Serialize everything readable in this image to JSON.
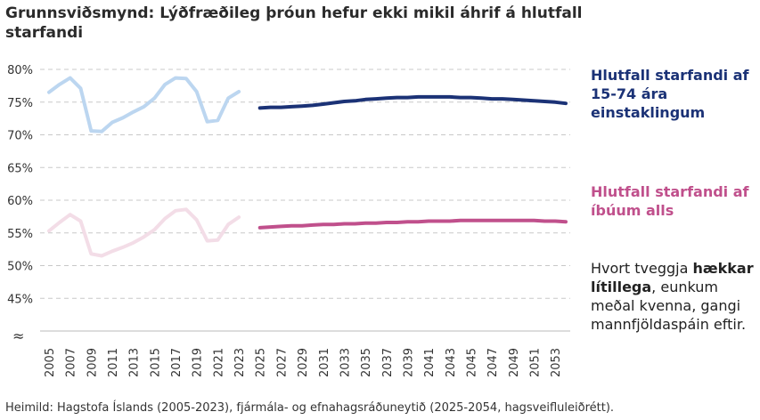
{
  "title": "Grunnsviðsmynd: Lýðfræðileg þróun hefur ekki mikil áhrif á hlutfall starfandi",
  "labels": {
    "employment": "Hlutfall starfandi af 15-74 ára einstaklingum",
    "population": "Hlutfall starfandi af íbúum alls"
  },
  "note": {
    "before": "Hvort tveggja ",
    "bold": "hækkar lítillega",
    "after": ", eunkum meðal kvenna, gangi mannfjöldaspáin eftir."
  },
  "source": "Heimild: Hagstofa Íslands (2005-2023), fjármála- og efnahagsráðuneytið (2025-2054, hagsveifluleiðrétt).",
  "axis_break_symbol": "≈",
  "colors": {
    "employment_history": "#bcd6f0",
    "employment_projection": "#1b3276",
    "population_history": "#f3dde7",
    "population_projection": "#c0508c",
    "grid": "#c8c8c8"
  },
  "chart_data": {
    "type": "line",
    "ylim": [
      40,
      80
    ],
    "y_ticks": [
      "45%",
      "50%",
      "55%",
      "60%",
      "65%",
      "70%",
      "75%",
      "80%"
    ],
    "y_tick_values": [
      45,
      50,
      55,
      60,
      65,
      70,
      75,
      80
    ],
    "x_ticks": [
      "2005",
      "2007",
      "2009",
      "2011",
      "2013",
      "2015",
      "2017",
      "2019",
      "2021",
      "2023",
      "2025",
      "2027",
      "2029",
      "2031",
      "2033",
      "2035",
      "2037",
      "2039",
      "2041",
      "2043",
      "2045",
      "2047",
      "2049",
      "2051",
      "2053"
    ],
    "grid": "horizontal dashed",
    "series": [
      {
        "role": "employment_history",
        "x": [
          2005,
          2006,
          2007,
          2008,
          2009,
          2010,
          2011,
          2012,
          2013,
          2014,
          2015,
          2016,
          2017,
          2018,
          2019,
          2020,
          2021,
          2022,
          2023
        ],
        "values": [
          76.5,
          77.7,
          78.7,
          77.1,
          70.6,
          70.5,
          71.9,
          72.6,
          73.5,
          74.3,
          75.6,
          77.7,
          78.7,
          78.6,
          76.6,
          72.0,
          72.2,
          75.6,
          76.6
        ]
      },
      {
        "role": "employment_projection",
        "x": [
          2025,
          2026,
          2027,
          2028,
          2029,
          2030,
          2031,
          2032,
          2033,
          2034,
          2035,
          2036,
          2037,
          2038,
          2039,
          2040,
          2041,
          2042,
          2043,
          2044,
          2045,
          2046,
          2047,
          2048,
          2049,
          2050,
          2051,
          2052,
          2053,
          2054
        ],
        "values": [
          74.1,
          74.2,
          74.2,
          74.3,
          74.4,
          74.5,
          74.7,
          74.9,
          75.1,
          75.2,
          75.4,
          75.5,
          75.6,
          75.7,
          75.7,
          75.8,
          75.8,
          75.8,
          75.8,
          75.7,
          75.7,
          75.6,
          75.5,
          75.5,
          75.4,
          75.3,
          75.2,
          75.1,
          75.0,
          74.8
        ]
      },
      {
        "role": "population_history",
        "x": [
          2005,
          2006,
          2007,
          2008,
          2009,
          2010,
          2011,
          2012,
          2013,
          2014,
          2015,
          2016,
          2017,
          2018,
          2019,
          2020,
          2021,
          2022,
          2023
        ],
        "values": [
          55.3,
          56.6,
          57.8,
          56.8,
          51.8,
          51.5,
          52.2,
          52.8,
          53.5,
          54.4,
          55.5,
          57.2,
          58.4,
          58.6,
          57.0,
          53.8,
          53.9,
          56.3,
          57.4
        ]
      },
      {
        "role": "population_projection",
        "x": [
          2025,
          2026,
          2027,
          2028,
          2029,
          2030,
          2031,
          2032,
          2033,
          2034,
          2035,
          2036,
          2037,
          2038,
          2039,
          2040,
          2041,
          2042,
          2043,
          2044,
          2045,
          2046,
          2047,
          2048,
          2049,
          2050,
          2051,
          2052,
          2053,
          2054
        ],
        "values": [
          55.8,
          55.9,
          56.0,
          56.1,
          56.1,
          56.2,
          56.3,
          56.3,
          56.4,
          56.4,
          56.5,
          56.5,
          56.6,
          56.6,
          56.7,
          56.7,
          56.8,
          56.8,
          56.8,
          56.9,
          56.9,
          56.9,
          56.9,
          56.9,
          56.9,
          56.9,
          56.9,
          56.8,
          56.8,
          56.7
        ]
      }
    ]
  }
}
